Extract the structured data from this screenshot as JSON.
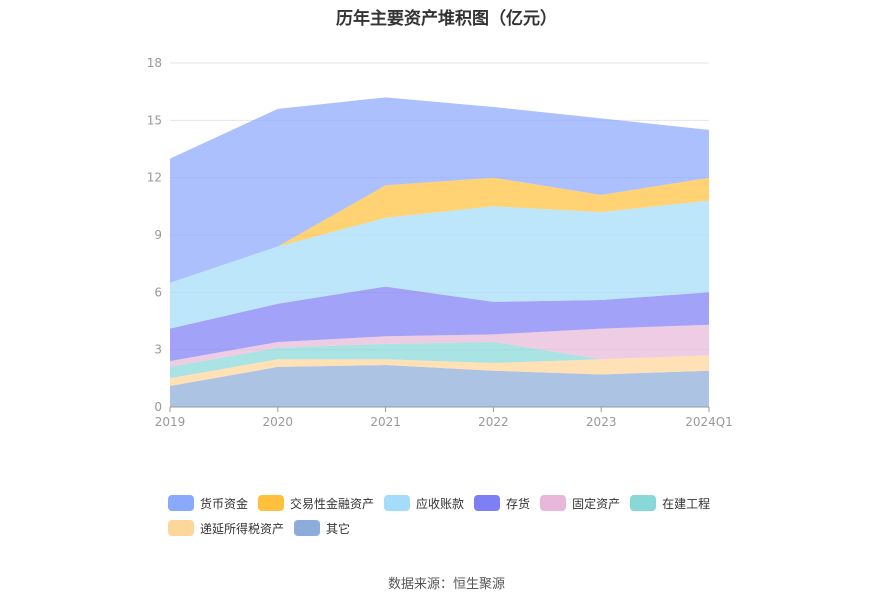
{
  "chart_data": {
    "type": "area",
    "title": "历年主要资产堆积图（亿元）",
    "categories": [
      "2019",
      "2020",
      "2021",
      "2022",
      "2023",
      "2024Q1"
    ],
    "y_ticks": [
      "0",
      "3",
      "6",
      "9",
      "12",
      "15",
      "18"
    ],
    "ylim": [
      0,
      18
    ],
    "stacked": true,
    "grid": true,
    "legend_position": "bottom",
    "series": [
      {
        "name": "其它",
        "color": "#8eacd9",
        "values": [
          1.1,
          2.1,
          2.2,
          1.9,
          1.7,
          1.9
        ]
      },
      {
        "name": "递延所得税资产",
        "color": "#ffd699",
        "values": [
          0.4,
          0.4,
          0.3,
          0.4,
          0.8,
          0.8
        ]
      },
      {
        "name": "在建工程",
        "color": "#88d8d8",
        "values": [
          0.6,
          0.6,
          0.8,
          1.1,
          0.0,
          0.0
        ]
      },
      {
        "name": "固定资产",
        "color": "#e8b8da",
        "values": [
          0.3,
          0.3,
          0.4,
          0.4,
          1.6,
          1.6
        ]
      },
      {
        "name": "存货",
        "color": "#7e7ef5",
        "values": [
          1.7,
          2.0,
          2.6,
          1.7,
          1.5,
          1.7
        ]
      },
      {
        "name": "应收账款",
        "color": "#a5dcfa",
        "values": [
          2.4,
          3.0,
          3.6,
          5.0,
          4.6,
          4.8
        ]
      },
      {
        "name": "交易性金融资产",
        "color": "#ffc13d",
        "values": [
          0.0,
          0.0,
          1.7,
          1.5,
          0.9,
          1.2
        ]
      },
      {
        "name": "货币资金",
        "color": "#8aa8fc",
        "values": [
          6.5,
          7.2,
          4.6,
          3.7,
          4.0,
          2.5
        ]
      }
    ]
  },
  "legend": [
    {
      "label": "货币资金",
      "color": "#8aa8fc"
    },
    {
      "label": "交易性金融资产",
      "color": "#ffc13d"
    },
    {
      "label": "应收账款",
      "color": "#a5dcfa"
    },
    {
      "label": "存货",
      "color": "#7e7ef5"
    },
    {
      "label": "固定资产",
      "color": "#e8b8da"
    },
    {
      "label": "在建工程",
      "color": "#88d8d8"
    },
    {
      "label": "递延所得税资产",
      "color": "#ffd699"
    },
    {
      "label": "其它",
      "color": "#8eacd9"
    }
  ],
  "source": "数据来源：恒生聚源"
}
